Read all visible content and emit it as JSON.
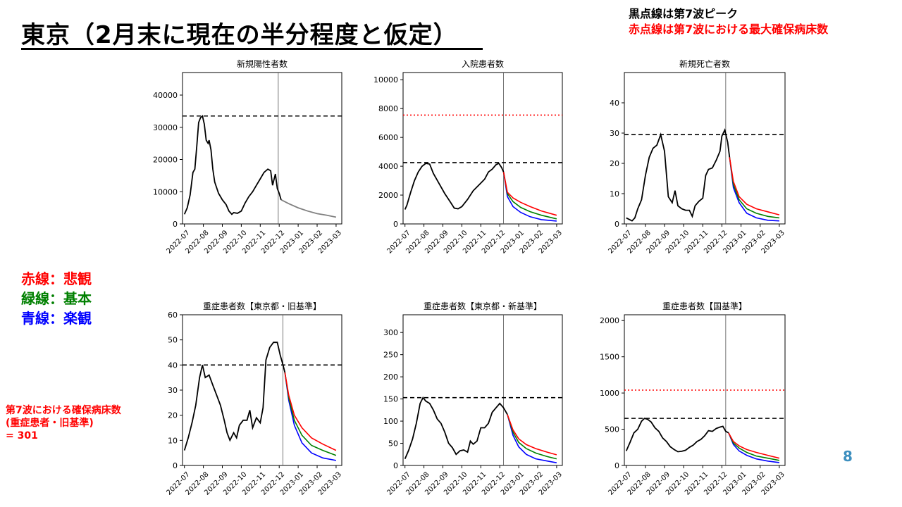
{
  "slide": {
    "title": "東京（2月末に現在の半分程度と仮定）",
    "note_black": "黒点線は第7波ピーク",
    "note_red": "赤点線は第7波における最大確保病床数",
    "legend": {
      "red": "赤線：悲観",
      "green": "緑線：基本",
      "blue": "青線：楽観"
    },
    "capacity_note": {
      "line1": "第7波における確保病床数",
      "line2": "(重症患者・旧基準)",
      "line3": "= 301"
    },
    "page_number": "8",
    "colors": {
      "pessimistic": "#ff0000",
      "basic": "#008000",
      "optimistic": "#0000ff",
      "observed": "#000000",
      "projection_single": "#808080",
      "page_number": "#3d8fbf"
    }
  },
  "chart_data": [
    {
      "type": "line",
      "title": "新規陽性者数",
      "x_ticks": [
        "2022-07",
        "2022-08",
        "2022-09",
        "2022-10",
        "2022-11",
        "2022-12",
        "2023-01",
        "2023-02",
        "2023-03"
      ],
      "ylim": [
        0,
        47000
      ],
      "y_ticks": [
        0,
        10000,
        20000,
        30000,
        40000
      ],
      "peak_line": 33500,
      "observed": [
        [
          0,
          3000
        ],
        [
          0.15,
          5000
        ],
        [
          0.3,
          9000
        ],
        [
          0.45,
          16000
        ],
        [
          0.55,
          17000
        ],
        [
          0.65,
          24000
        ],
        [
          0.75,
          31500
        ],
        [
          0.85,
          33000
        ],
        [
          0.95,
          33500
        ],
        [
          1.05,
          31000
        ],
        [
          1.15,
          26000
        ],
        [
          1.25,
          25000
        ],
        [
          1.3,
          26000
        ],
        [
          1.4,
          23000
        ],
        [
          1.5,
          17000
        ],
        [
          1.6,
          13000
        ],
        [
          1.8,
          9500
        ],
        [
          2.0,
          7500
        ],
        [
          2.2,
          6000
        ],
        [
          2.35,
          4000
        ],
        [
          2.5,
          3000
        ],
        [
          2.6,
          3500
        ],
        [
          2.8,
          3300
        ],
        [
          3.0,
          4000
        ],
        [
          3.2,
          6500
        ],
        [
          3.4,
          8500
        ],
        [
          3.6,
          10000
        ],
        [
          3.8,
          12000
        ],
        [
          4.0,
          14000
        ],
        [
          4.2,
          16000
        ],
        [
          4.4,
          17000
        ],
        [
          4.55,
          16500
        ],
        [
          4.65,
          12000
        ],
        [
          4.8,
          15500
        ],
        [
          4.9,
          11000
        ],
        [
          5.0,
          9500
        ],
        [
          5.1,
          7500
        ]
      ],
      "projection": [
        [
          5.1,
          7500
        ],
        [
          5.5,
          6300
        ],
        [
          6.0,
          5000
        ],
        [
          6.5,
          4000
        ],
        [
          7.0,
          3200
        ],
        [
          7.5,
          2700
        ],
        [
          8.0,
          2100
        ]
      ],
      "event_x": 4.95
    },
    {
      "type": "line",
      "title": "入院患者数",
      "x_ticks": [
        "2022-07",
        "2022-08",
        "2022-09",
        "2022-10",
        "2022-11",
        "2022-12",
        "2023-01",
        "2023-02",
        "2023-03"
      ],
      "ylim": [
        0,
        10500
      ],
      "y_ticks": [
        0,
        2000,
        4000,
        6000,
        8000,
        10000
      ],
      "peak_line": 4250,
      "capacity_line": 7550,
      "observed": [
        [
          0,
          1000
        ],
        [
          0.1,
          1300
        ],
        [
          0.3,
          2200
        ],
        [
          0.5,
          3000
        ],
        [
          0.7,
          3600
        ],
        [
          0.9,
          4000
        ],
        [
          1.1,
          4200
        ],
        [
          1.3,
          4150
        ],
        [
          1.5,
          3500
        ],
        [
          1.8,
          2800
        ],
        [
          2.1,
          2100
        ],
        [
          2.4,
          1500
        ],
        [
          2.6,
          1100
        ],
        [
          2.8,
          1050
        ],
        [
          3.0,
          1200
        ],
        [
          3.3,
          1700
        ],
        [
          3.6,
          2300
        ],
        [
          3.9,
          2700
        ],
        [
          4.2,
          3100
        ],
        [
          4.4,
          3600
        ],
        [
          4.6,
          3800
        ],
        [
          4.8,
          4100
        ],
        [
          4.95,
          4200
        ],
        [
          5.1,
          3900
        ],
        [
          5.2,
          3600
        ]
      ],
      "scenarios": {
        "pessimistic": [
          [
            5.2,
            3600
          ],
          [
            5.4,
            2200
          ],
          [
            5.7,
            1800
          ],
          [
            6.1,
            1500
          ],
          [
            6.6,
            1200
          ],
          [
            7.2,
            900
          ],
          [
            8.0,
            600
          ]
        ],
        "basic": [
          [
            5.2,
            3600
          ],
          [
            5.4,
            2100
          ],
          [
            5.7,
            1550
          ],
          [
            6.1,
            1150
          ],
          [
            6.6,
            850
          ],
          [
            7.2,
            600
          ],
          [
            8.0,
            350
          ]
        ],
        "optimistic": [
          [
            5.2,
            3600
          ],
          [
            5.4,
            1900
          ],
          [
            5.7,
            1200
          ],
          [
            6.1,
            800
          ],
          [
            6.6,
            500
          ],
          [
            7.2,
            300
          ],
          [
            8.0,
            200
          ]
        ]
      },
      "event_x": 5.2
    },
    {
      "type": "line",
      "title": "新規死亡者数",
      "x_ticks": [
        "2022-07",
        "2022-08",
        "2022-09",
        "2022-10",
        "2022-11",
        "2022-12",
        "2023-01",
        "2023-02",
        "2023-03"
      ],
      "ylim": [
        0,
        50
      ],
      "y_ticks": [
        0,
        10,
        20,
        30,
        40
      ],
      "peak_line": 29.5,
      "observed": [
        [
          0,
          2
        ],
        [
          0.15,
          1.5
        ],
        [
          0.3,
          1
        ],
        [
          0.45,
          2
        ],
        [
          0.6,
          5
        ],
        [
          0.8,
          8
        ],
        [
          1.0,
          16
        ],
        [
          1.2,
          22
        ],
        [
          1.4,
          25
        ],
        [
          1.6,
          26
        ],
        [
          1.8,
          29.5
        ],
        [
          2.0,
          24
        ],
        [
          2.2,
          9
        ],
        [
          2.4,
          7
        ],
        [
          2.55,
          11
        ],
        [
          2.7,
          6
        ],
        [
          2.9,
          5
        ],
        [
          3.1,
          4.5
        ],
        [
          3.3,
          4.5
        ],
        [
          3.45,
          2.5
        ],
        [
          3.6,
          6
        ],
        [
          3.8,
          7.5
        ],
        [
          4.0,
          8.5
        ],
        [
          4.15,
          16
        ],
        [
          4.3,
          18
        ],
        [
          4.5,
          18.5
        ],
        [
          4.7,
          21
        ],
        [
          4.9,
          24
        ],
        [
          5.0,
          29
        ],
        [
          5.15,
          31
        ],
        [
          5.3,
          27
        ],
        [
          5.4,
          22
        ]
      ],
      "scenarios": {
        "pessimistic": [
          [
            5.4,
            22
          ],
          [
            5.6,
            14
          ],
          [
            5.9,
            9
          ],
          [
            6.3,
            6.5
          ],
          [
            6.8,
            5
          ],
          [
            7.4,
            4
          ],
          [
            8.0,
            3
          ]
        ],
        "basic": [
          [
            5.4,
            22
          ],
          [
            5.6,
            13
          ],
          [
            5.9,
            8
          ],
          [
            6.3,
            5
          ],
          [
            6.8,
            3.5
          ],
          [
            7.4,
            2.5
          ],
          [
            8.0,
            2
          ]
        ],
        "optimistic": [
          [
            5.4,
            22
          ],
          [
            5.6,
            12
          ],
          [
            5.9,
            7
          ],
          [
            6.3,
            3.5
          ],
          [
            6.8,
            2
          ],
          [
            7.4,
            1.2
          ],
          [
            8.0,
            1
          ]
        ]
      },
      "event_x": 5.2
    },
    {
      "type": "line",
      "title": "重症患者数【東京都・旧基準】",
      "x_ticks": [
        "2022-07",
        "2022-08",
        "2022-09",
        "2022-10",
        "2022-11",
        "2022-12",
        "2023-01",
        "2023-02",
        "2023-03"
      ],
      "ylim": [
        0,
        60
      ],
      "y_ticks": [
        0,
        10,
        20,
        30,
        40,
        50,
        60
      ],
      "peak_line": 40,
      "observed": [
        [
          0,
          6
        ],
        [
          0.2,
          11
        ],
        [
          0.4,
          17
        ],
        [
          0.6,
          24
        ],
        [
          0.8,
          35
        ],
        [
          0.95,
          40
        ],
        [
          1.1,
          35
        ],
        [
          1.3,
          36
        ],
        [
          1.5,
          32
        ],
        [
          1.7,
          28
        ],
        [
          1.9,
          24
        ],
        [
          2.1,
          18
        ],
        [
          2.25,
          13
        ],
        [
          2.4,
          10
        ],
        [
          2.6,
          13
        ],
        [
          2.75,
          11
        ],
        [
          2.9,
          16
        ],
        [
          3.1,
          18
        ],
        [
          3.3,
          18
        ],
        [
          3.45,
          22
        ],
        [
          3.6,
          15
        ],
        [
          3.8,
          19
        ],
        [
          4.0,
          17
        ],
        [
          4.15,
          23
        ],
        [
          4.3,
          42
        ],
        [
          4.5,
          47
        ],
        [
          4.7,
          49
        ],
        [
          4.9,
          49
        ],
        [
          5.05,
          44
        ],
        [
          5.2,
          40
        ],
        [
          5.3,
          37
        ]
      ],
      "scenarios": {
        "pessimistic": [
          [
            5.3,
            37
          ],
          [
            5.5,
            28
          ],
          [
            5.8,
            20
          ],
          [
            6.2,
            15
          ],
          [
            6.7,
            11
          ],
          [
            7.3,
            8.5
          ],
          [
            8.0,
            6
          ]
        ],
        "basic": [
          [
            5.3,
            37
          ],
          [
            5.5,
            27
          ],
          [
            5.8,
            18
          ],
          [
            6.2,
            12
          ],
          [
            6.7,
            8
          ],
          [
            7.3,
            6
          ],
          [
            8.0,
            4
          ]
        ],
        "optimistic": [
          [
            5.3,
            37
          ],
          [
            5.5,
            26
          ],
          [
            5.8,
            16
          ],
          [
            6.2,
            9
          ],
          [
            6.7,
            5
          ],
          [
            7.3,
            3
          ],
          [
            8.0,
            2
          ]
        ]
      },
      "event_x": 5.2
    },
    {
      "type": "line",
      "title": "重症患者数【東京都・新基準】",
      "x_ticks": [
        "2022-07",
        "2022-08",
        "2022-09",
        "2022-10",
        "2022-11",
        "2022-12",
        "2023-01",
        "2023-02",
        "2023-03"
      ],
      "ylim": [
        0,
        340
      ],
      "y_ticks": [
        0,
        50,
        100,
        150,
        200,
        250,
        300
      ],
      "peak_line": 153,
      "observed": [
        [
          0,
          15
        ],
        [
          0.2,
          35
        ],
        [
          0.4,
          60
        ],
        [
          0.6,
          95
        ],
        [
          0.8,
          140
        ],
        [
          0.95,
          153
        ],
        [
          1.1,
          145
        ],
        [
          1.3,
          140
        ],
        [
          1.5,
          125
        ],
        [
          1.7,
          105
        ],
        [
          1.9,
          95
        ],
        [
          2.1,
          75
        ],
        [
          2.3,
          50
        ],
        [
          2.5,
          40
        ],
        [
          2.7,
          25
        ],
        [
          2.9,
          33
        ],
        [
          3.1,
          35
        ],
        [
          3.3,
          30
        ],
        [
          3.45,
          55
        ],
        [
          3.6,
          48
        ],
        [
          3.8,
          55
        ],
        [
          4.0,
          85
        ],
        [
          4.2,
          85
        ],
        [
          4.4,
          95
        ],
        [
          4.6,
          120
        ],
        [
          4.8,
          130
        ],
        [
          5.0,
          140
        ],
        [
          5.2,
          130
        ],
        [
          5.4,
          115
        ]
      ],
      "scenarios": {
        "pessimistic": [
          [
            5.4,
            115
          ],
          [
            5.7,
            80
          ],
          [
            6.0,
            60
          ],
          [
            6.4,
            47
          ],
          [
            6.9,
            38
          ],
          [
            7.5,
            30
          ],
          [
            8.0,
            24
          ]
        ],
        "basic": [
          [
            5.4,
            115
          ],
          [
            5.7,
            75
          ],
          [
            6.0,
            52
          ],
          [
            6.4,
            38
          ],
          [
            6.9,
            28
          ],
          [
            7.5,
            20
          ],
          [
            8.0,
            15
          ]
        ],
        "optimistic": [
          [
            5.4,
            115
          ],
          [
            5.7,
            68
          ],
          [
            6.0,
            42
          ],
          [
            6.4,
            25
          ],
          [
            6.9,
            15
          ],
          [
            7.5,
            10
          ],
          [
            8.0,
            6
          ]
        ]
      },
      "event_x": 5.2
    },
    {
      "type": "line",
      "title": "重症患者数【国基準】",
      "x_ticks": [
        "2022-07",
        "2022-08",
        "2022-09",
        "2022-10",
        "2022-11",
        "2022-12",
        "2023-01",
        "2023-02",
        "2023-03"
      ],
      "ylim": [
        0,
        2080
      ],
      "y_ticks": [
        0,
        500,
        1000,
        1500,
        2000
      ],
      "peak_line": 650,
      "capacity_line": 1040,
      "observed": [
        [
          0,
          200
        ],
        [
          0.2,
          320
        ],
        [
          0.4,
          450
        ],
        [
          0.6,
          500
        ],
        [
          0.8,
          610
        ],
        [
          0.95,
          650
        ],
        [
          1.1,
          640
        ],
        [
          1.3,
          600
        ],
        [
          1.5,
          520
        ],
        [
          1.7,
          470
        ],
        [
          1.9,
          380
        ],
        [
          2.1,
          330
        ],
        [
          2.3,
          260
        ],
        [
          2.5,
          220
        ],
        [
          2.7,
          190
        ],
        [
          2.9,
          195
        ],
        [
          3.1,
          210
        ],
        [
          3.3,
          250
        ],
        [
          3.5,
          280
        ],
        [
          3.7,
          330
        ],
        [
          3.9,
          360
        ],
        [
          4.1,
          410
        ],
        [
          4.3,
          480
        ],
        [
          4.5,
          470
        ],
        [
          4.7,
          510
        ],
        [
          4.9,
          530
        ],
        [
          5.05,
          540
        ],
        [
          5.2,
          470
        ],
        [
          5.35,
          450
        ]
      ],
      "scenarios": {
        "pessimistic": [
          [
            5.35,
            450
          ],
          [
            5.6,
            330
          ],
          [
            5.9,
            270
          ],
          [
            6.3,
            220
          ],
          [
            6.8,
            180
          ],
          [
            7.4,
            140
          ],
          [
            8.0,
            100
          ]
        ],
        "basic": [
          [
            5.35,
            450
          ],
          [
            5.6,
            310
          ],
          [
            5.9,
            240
          ],
          [
            6.3,
            180
          ],
          [
            6.8,
            130
          ],
          [
            7.4,
            100
          ],
          [
            8.0,
            70
          ]
        ],
        "optimistic": [
          [
            5.35,
            450
          ],
          [
            5.6,
            290
          ],
          [
            5.9,
            200
          ],
          [
            6.3,
            140
          ],
          [
            6.8,
            90
          ],
          [
            7.4,
            60
          ],
          [
            8.0,
            40
          ]
        ]
      },
      "event_x": 5.2
    }
  ]
}
